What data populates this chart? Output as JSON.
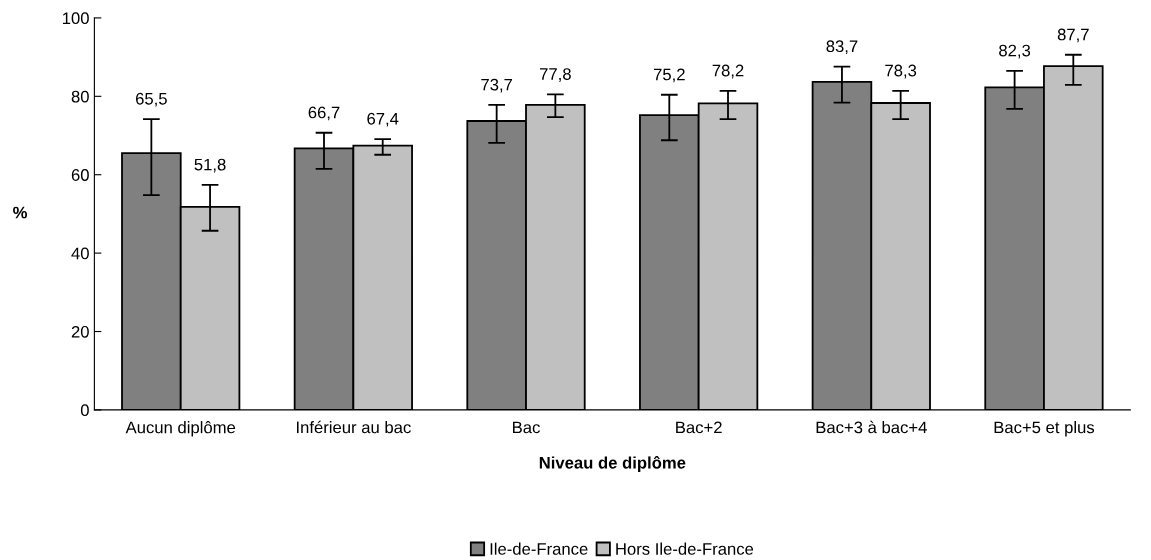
{
  "chart_data": {
    "type": "bar",
    "xlabel": "Niveau de diplôme",
    "ylabel": "%",
    "categories": [
      "Aucun diplôme",
      "Inférieur au bac",
      "Bac",
      "Bac+2",
      "Bac+3 à bac+4",
      "Bac+5 et plus"
    ],
    "series": [
      {
        "name": "Ile-de-France",
        "color": "#808080",
        "values": [
          65.5,
          66.7,
          73.7,
          75.2,
          83.7,
          82.3
        ],
        "value_labels": [
          "65,5",
          "66,7",
          "73,7",
          "75,2",
          "83,7",
          "82,3"
        ],
        "errors": [
          [
            54.8,
            74.2
          ],
          [
            61.5,
            70.7
          ],
          [
            68.1,
            77.8
          ],
          [
            68.8,
            80.4
          ],
          [
            78.4,
            87.6
          ],
          [
            76.8,
            86.5
          ]
        ]
      },
      {
        "name": "Hors Ile-de-France",
        "color": "#c0c0c0",
        "values": [
          51.8,
          67.4,
          77.8,
          78.2,
          78.3,
          87.7
        ],
        "value_labels": [
          "51,8",
          "67,4",
          "77,8",
          "78,2",
          "78,3",
          "87,7"
        ],
        "errors": [
          [
            45.7,
            57.4
          ],
          [
            65.1,
            69.1
          ],
          [
            74.7,
            80.5
          ],
          [
            74.2,
            81.4
          ],
          [
            74.2,
            81.4
          ],
          [
            82.9,
            90.6
          ]
        ]
      }
    ],
    "ylim": [
      0,
      100
    ],
    "yticks": [
      0,
      20,
      40,
      60,
      80,
      100
    ],
    "legend": "bottom",
    "grid": false
  }
}
